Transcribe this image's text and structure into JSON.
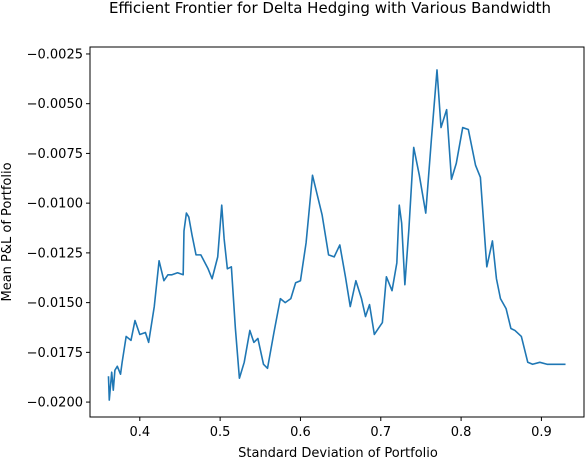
{
  "chart_data": {
    "type": "line",
    "title": "Efficient Frontier for Delta Hedging with Various Bandwidth",
    "xlabel": "Standard Deviation of Portfolio",
    "ylabel": "Mean P&L of Portfolio",
    "xlim": [
      0.338,
      0.953
    ],
    "ylim": [
      -0.02075,
      -0.00215
    ],
    "xticks": [
      0.4,
      0.5,
      0.6,
      0.7,
      0.8,
      0.9
    ],
    "xtick_labels": [
      "0.4",
      "0.5",
      "0.6",
      "0.7",
      "0.8",
      "0.9"
    ],
    "yticks": [
      -0.02,
      -0.0175,
      -0.015,
      -0.0125,
      -0.01,
      -0.0075,
      -0.005,
      -0.0025
    ],
    "ytick_labels": [
      "−0.0200",
      "−0.0175",
      "−0.0150",
      "−0.0125",
      "−0.0100",
      "−0.0075",
      "−0.0050",
      "−0.0025"
    ],
    "grid": false,
    "series": [
      {
        "color": "#1f77b4",
        "x": [
          0.361,
          0.362,
          0.365,
          0.367,
          0.369,
          0.372,
          0.376,
          0.378,
          0.383,
          0.389,
          0.394,
          0.4,
          0.407,
          0.411,
          0.418,
          0.424,
          0.43,
          0.435,
          0.44,
          0.447,
          0.454,
          0.455,
          0.458,
          0.461,
          0.465,
          0.47,
          0.476,
          0.485,
          0.49,
          0.497,
          0.502,
          0.505,
          0.509,
          0.514,
          0.519,
          0.524,
          0.53,
          0.537,
          0.542,
          0.547,
          0.554,
          0.559,
          0.567,
          0.575,
          0.581,
          0.588,
          0.594,
          0.6,
          0.607,
          0.615,
          0.621,
          0.627,
          0.635,
          0.642,
          0.649,
          0.656,
          0.662,
          0.669,
          0.676,
          0.681,
          0.686,
          0.692,
          0.697,
          0.702,
          0.707,
          0.714,
          0.72,
          0.723,
          0.726,
          0.73,
          0.735,
          0.741,
          0.748,
          0.756,
          0.763,
          0.77,
          0.775,
          0.782,
          0.788,
          0.794,
          0.802,
          0.809,
          0.818,
          0.824,
          0.832,
          0.839,
          0.844,
          0.849,
          0.856,
          0.862,
          0.867,
          0.875,
          0.883,
          0.889,
          0.898,
          0.907,
          0.915,
          0.923,
          0.93
        ],
        "y": [
          -0.0187,
          -0.0199,
          -0.0185,
          -0.0194,
          -0.0184,
          -0.0182,
          -0.0186,
          -0.018,
          -0.0167,
          -0.0169,
          -0.0159,
          -0.0166,
          -0.0165,
          -0.017,
          -0.0152,
          -0.0129,
          -0.0139,
          -0.0136,
          -0.0136,
          -0.0135,
          -0.0136,
          -0.0114,
          -0.0105,
          -0.0107,
          -0.0116,
          -0.0126,
          -0.0126,
          -0.0133,
          -0.0138,
          -0.0127,
          -0.0101,
          -0.0118,
          -0.0133,
          -0.0132,
          -0.0163,
          -0.0188,
          -0.018,
          -0.0164,
          -0.017,
          -0.0168,
          -0.0181,
          -0.0183,
          -0.0165,
          -0.0148,
          -0.015,
          -0.0148,
          -0.014,
          -0.0139,
          -0.012,
          -0.0086,
          -0.0096,
          -0.0106,
          -0.0126,
          -0.0127,
          -0.0121,
          -0.0137,
          -0.0152,
          -0.0139,
          -0.0148,
          -0.0157,
          -0.0151,
          -0.0166,
          -0.0163,
          -0.016,
          -0.0137,
          -0.0144,
          -0.013,
          -0.0101,
          -0.011,
          -0.0141,
          -0.0113,
          -0.0072,
          -0.0086,
          -0.0105,
          -0.0068,
          -0.0033,
          -0.0062,
          -0.0053,
          -0.0088,
          -0.008,
          -0.0062,
          -0.0063,
          -0.0081,
          -0.0087,
          -0.0132,
          -0.0119,
          -0.0138,
          -0.0148,
          -0.0153,
          -0.0163,
          -0.0164,
          -0.0167,
          -0.018,
          -0.0181,
          -0.018,
          -0.0181,
          -0.0181,
          -0.0181,
          -0.0181
        ]
      }
    ]
  }
}
